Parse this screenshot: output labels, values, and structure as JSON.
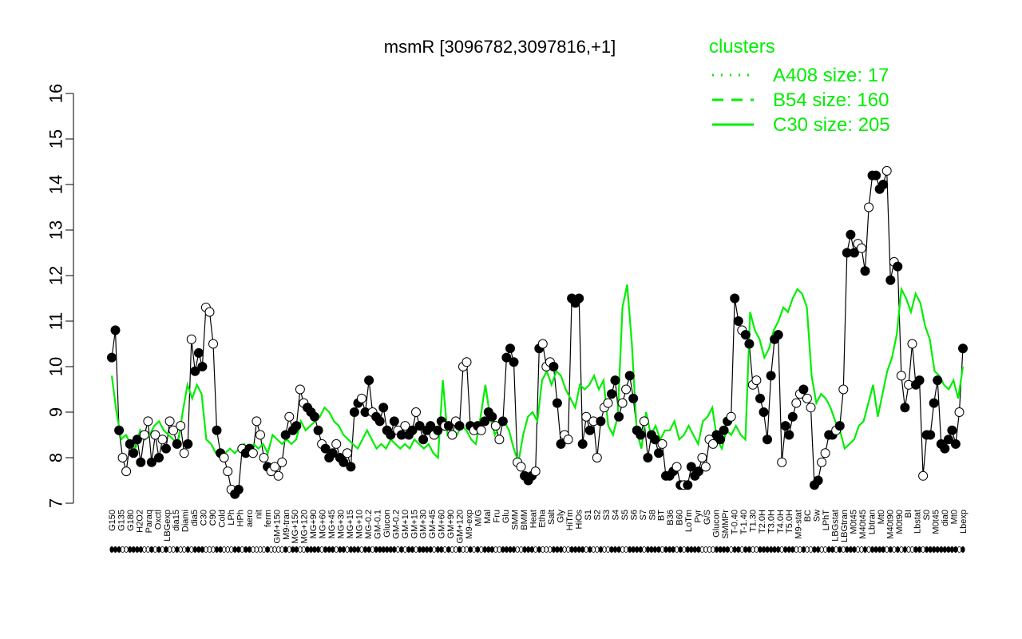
{
  "colors": {
    "ink": "#000000",
    "cluster": "#00ee00",
    "open_point": "#ffffff"
  },
  "chart_data": {
    "type": "line",
    "title": "msmR [3096782,3097816,+1]",
    "xlabel": "",
    "ylabel": "",
    "ylim": [
      7,
      16
    ],
    "yticks": [
      "7",
      "8",
      "9",
      "10",
      "11",
      "12",
      "13",
      "14",
      "15",
      "16"
    ],
    "grid": false,
    "legend": {
      "title": "clusters",
      "placement": "top-right",
      "entries": [
        {
          "label": "A408 size: 17",
          "style": "dotted"
        },
        {
          "label": "B54 size: 160",
          "style": "dashed"
        },
        {
          "label": "C30 size: 205",
          "style": "solid"
        }
      ]
    },
    "x_tick_labels": [
      "G150",
      "G135",
      "G180",
      "H2O2",
      "Paraq",
      "Oxctl",
      "LBGexp",
      "dia15",
      "Diami",
      "dia5",
      "C30",
      "C90",
      "Cold",
      "LPh",
      "HPh",
      "aero",
      "nit",
      "ferm",
      "GM+150",
      "M9-tran",
      "MG+150",
      "MG+120",
      "MG+90",
      "MG+60",
      "MG+45",
      "MG+30",
      "MG+15",
      "MG+10",
      "MG-0.2",
      "GM-0.1",
      "Glucon",
      "GM-0.2",
      "GM+10",
      "GM+15",
      "GM+30",
      "GM+45",
      "GM+60",
      "GM+90",
      "GM+120",
      "M9-exp",
      "M/G",
      "Mal",
      "Fru",
      "Glu",
      "SMM",
      "BMM",
      "Heat",
      "Etha",
      "Salt",
      "Gly",
      "HiTm",
      "HiOs",
      "S1",
      "S2",
      "S3",
      "S4",
      "S5",
      "S6",
      "S7",
      "S8",
      "BT",
      "B36",
      "B60",
      "LoTm",
      "Pyr",
      "G/S",
      "Glucon",
      "SMMPr",
      "T-0.40",
      "T-1.40",
      "T1.30",
      "T2.0H",
      "T3.0H",
      "T4.0H",
      "T5.0H",
      "M9-stat",
      "BC",
      "Sw",
      "LPhT",
      "LBGstat",
      "LBGtran",
      "M0t45",
      "M40t45",
      "Lbtran",
      "Mt0",
      "M40t90",
      "M0t90",
      "BI",
      "Lbstat",
      "S0",
      "M0t45",
      "dia0",
      "Mt0",
      "Lbexp"
    ],
    "series": [
      {
        "name": "",
        "values": [
          10.2,
          10.8,
          8.6,
          8.0,
          7.7,
          8.3,
          8.1,
          8.4,
          7.9,
          8.5,
          8.8,
          7.9,
          8.5,
          8.0,
          8.4,
          8.2,
          8.8,
          8.6,
          8.3,
          8.7,
          8.1,
          8.3,
          10.6,
          9.9,
          10.3,
          10.0,
          11.3,
          11.2,
          10.5,
          8.6,
          8.1,
          8.0,
          7.7,
          7.3,
          7.2,
          7.3,
          8.2,
          8.1,
          8.2,
          8.1,
          8.8,
          8.5,
          8.0,
          7.8,
          7.7,
          7.8,
          7.6,
          7.9,
          8.5,
          8.9,
          8.6,
          8.7,
          9.5,
          9.2,
          9.1,
          9.0,
          8.9,
          8.6,
          8.3,
          8.2,
          8.0,
          8.1,
          8.3,
          8.0,
          7.9,
          8.1,
          7.8,
          9.0,
          9.2,
          9.3,
          9.0,
          9.7,
          9.0,
          8.9,
          8.8,
          9.1,
          8.6,
          8.5,
          8.8,
          8.6,
          8.5,
          8.7,
          8.5,
          8.6,
          9.0,
          8.7,
          8.4,
          8.6,
          8.7,
          8.5,
          8.6,
          8.8,
          8.7,
          8.7,
          8.5,
          8.8,
          8.7,
          10.0,
          10.1,
          8.7,
          8.6,
          8.7,
          8.6,
          8.8,
          9.0,
          8.9,
          8.7,
          8.4,
          8.8,
          10.2,
          10.4,
          10.1,
          7.9,
          7.8,
          7.6,
          7.5,
          7.6,
          7.7,
          10.4,
          10.5,
          10.0,
          10.1,
          10.0,
          9.2,
          8.3,
          8.5,
          8.4,
          11.5,
          11.4,
          11.5,
          8.3,
          8.9,
          8.6,
          8.8,
          8.0,
          8.8,
          9.1,
          9.2,
          9.4,
          9.7,
          8.9,
          9.2,
          9.5,
          9.8,
          9.3,
          8.6,
          8.5,
          8.8,
          8.0,
          8.5,
          8.4,
          8.1,
          8.3,
          7.6,
          7.6,
          7.7,
          7.8,
          7.4,
          7.4,
          7.4,
          7.8,
          7.6,
          7.7,
          8.0,
          7.8,
          8.4,
          8.3,
          8.5,
          8.4,
          8.6,
          8.8,
          8.9,
          11.5,
          11.0,
          10.8,
          10.7,
          10.5,
          9.6,
          9.7,
          9.3,
          9.0,
          8.4,
          9.8,
          10.6,
          10.7,
          7.9,
          8.7,
          8.5,
          8.9,
          9.2,
          9.4,
          9.5,
          9.3,
          9.1,
          7.4,
          7.5,
          7.9,
          8.1,
          8.5,
          8.5,
          8.6,
          8.7,
          9.5,
          12.5,
          12.9,
          12.5,
          12.7,
          12.6,
          12.1,
          13.5,
          14.2,
          14.2,
          13.9,
          14.0,
          14.3,
          11.9,
          12.3,
          12.2,
          9.8,
          9.1,
          9.6,
          10.5,
          9.6,
          9.7,
          7.6,
          8.5,
          8.5,
          9.2,
          9.7,
          8.3,
          8.2,
          8.4,
          8.6,
          8.3,
          9.0,
          10.4
        ],
        "filled": [
          1,
          1,
          1,
          0,
          0,
          1,
          1,
          1,
          1,
          0,
          0,
          1,
          0,
          1,
          0,
          1,
          0,
          0,
          1,
          0,
          0,
          1,
          0,
          1,
          1,
          1,
          0,
          0,
          0,
          1,
          1,
          0,
          0,
          0,
          1,
          1,
          0,
          1,
          1,
          0,
          0,
          0,
          0,
          1,
          0,
          0,
          0,
          0,
          1,
          0,
          1,
          1,
          0,
          0,
          1,
          1,
          1,
          1,
          0,
          1,
          1,
          1,
          0,
          1,
          1,
          0,
          1,
          1,
          1,
          0,
          1,
          1,
          0,
          1,
          1,
          1,
          1,
          1,
          1,
          0,
          1,
          0,
          1,
          1,
          0,
          1,
          1,
          1,
          1,
          0,
          1,
          1,
          0,
          1,
          0,
          0,
          1,
          0,
          0,
          1,
          0,
          1,
          0,
          1,
          1,
          1,
          0,
          0,
          1,
          1,
          1,
          1,
          0,
          0,
          1,
          1,
          1,
          0,
          1,
          0,
          0,
          0,
          1,
          1,
          1,
          0,
          0,
          1,
          1,
          1,
          1,
          0,
          1,
          0,
          0,
          1,
          0,
          0,
          1,
          1,
          1,
          0,
          0,
          1,
          1,
          1,
          1,
          0,
          1,
          1,
          1,
          1,
          0,
          1,
          1,
          1,
          0,
          1,
          0,
          1,
          1,
          1,
          1,
          0,
          0,
          0,
          0,
          1,
          1,
          1,
          1,
          0,
          1,
          1,
          0,
          1,
          1,
          0,
          0,
          1,
          1,
          1,
          1,
          1,
          1,
          0,
          1,
          1,
          1,
          0,
          0,
          1,
          0,
          0,
          1,
          1,
          0,
          0,
          1,
          1,
          0,
          1,
          0,
          1,
          1,
          1,
          0,
          0,
          1,
          0,
          1,
          1,
          1,
          1,
          0,
          1,
          0,
          1,
          0,
          1,
          0,
          0,
          1,
          1,
          0,
          1,
          1,
          1,
          1,
          1,
          1,
          1,
          1,
          1,
          0,
          1,
          0,
          0,
          1,
          1,
          1,
          1,
          1,
          1,
          1,
          1,
          0,
          1,
          1,
          1,
          1,
          1,
          0,
          1,
          0,
          0,
          1,
          0,
          1
        ]
      },
      {
        "name": "C30 size: 205",
        "style": "solid",
        "values": [
          9.8,
          9.0,
          8.4,
          8.5,
          8.3,
          8.2,
          8.6,
          8.4,
          8.5,
          8.7,
          8.8,
          8.6,
          8.5,
          8.4,
          8.3,
          9.0,
          9.6,
          9.3,
          9.6,
          9.4,
          8.4,
          8.3,
          8.1,
          8.0,
          8.1,
          8.2,
          8.1,
          8.2,
          8.3,
          8.1,
          8.3,
          8.2,
          8.3,
          8.1,
          8.5,
          8.4,
          8.3,
          8.4,
          8.3,
          8.4,
          8.8,
          8.6,
          8.7,
          8.8,
          8.9,
          9.1,
          9.0,
          8.8,
          8.7,
          8.5,
          8.4,
          8.3,
          8.2,
          8.4,
          8.6,
          8.4,
          8.2,
          8.3,
          8.2,
          8.4,
          8.3,
          8.2,
          8.3,
          8.2,
          8.4,
          8.3,
          8.2,
          8.3,
          8.1,
          8.0,
          9.7,
          8.5,
          8.6,
          8.5,
          8.7,
          8.6,
          8.4,
          8.3,
          8.9,
          9.6,
          8.9,
          8.5,
          8.7,
          8.8,
          8.6,
          8.2,
          7.9,
          8.5,
          8.9,
          9.0,
          8.8,
          9.7,
          9.9,
          9.6,
          9.9,
          9.8,
          9.5,
          9.3,
          9.1,
          9.6,
          9.5,
          9.6,
          9.8,
          9.5,
          9.7,
          8.7,
          8.5,
          8.9,
          11.3,
          11.8,
          10.5,
          8.6,
          8.2,
          9.0,
          8.5,
          8.7,
          8.4,
          8.6,
          8.6,
          8.8,
          8.4,
          8.5,
          8.7,
          8.5,
          8.3,
          8.8,
          8.9,
          9.1,
          8.4,
          8.2,
          8.6,
          8.5,
          8.7,
          8.5,
          8.4,
          11.2,
          10.8,
          10.6,
          10.2,
          10.4,
          10.8,
          11.0,
          11.3,
          11.2,
          11.5,
          11.7,
          11.6,
          11.3,
          9.8,
          9.2,
          9.4,
          9.3,
          9.1,
          8.8,
          8.6,
          8.2,
          8.3,
          8.4,
          8.7,
          8.8,
          9.2,
          9.6,
          8.9,
          9.4,
          9.9,
          10.2,
          10.7,
          11.7,
          11.5,
          11.2,
          11.6,
          11.4,
          10.9,
          10.6,
          9.9,
          9.8,
          9.6,
          9.5,
          9.7,
          9.3,
          10.0
        ]
      }
    ]
  }
}
